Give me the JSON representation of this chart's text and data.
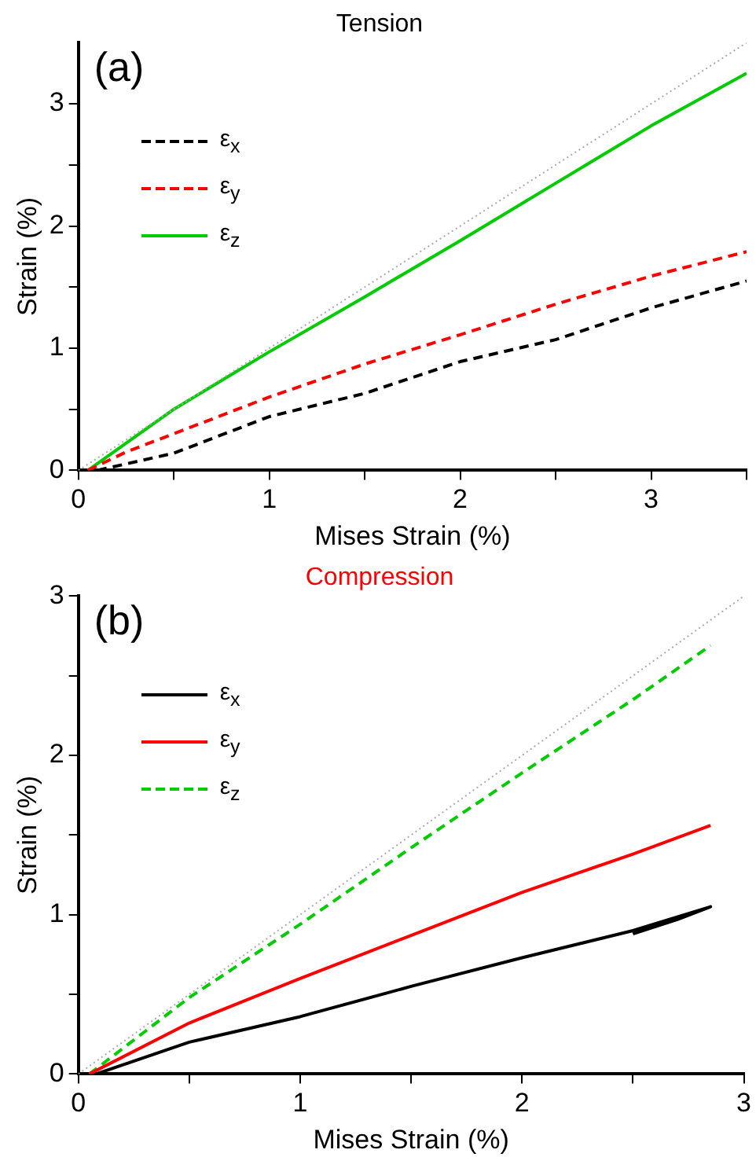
{
  "chart_data": [
    {
      "type": "line",
      "title": "Tension",
      "xlabel": "Mises Strain (%)",
      "ylabel": "Strain (%)",
      "annotations": [
        "(a)"
      ],
      "xlim": [
        0,
        3.5
      ],
      "ylim": [
        0,
        3.5
      ],
      "xticks": [
        0,
        {
          "value": 0.5,
          "label": null
        },
        1,
        {
          "value": 1.5,
          "label": null
        },
        2,
        {
          "value": 2.5,
          "label": null
        },
        3,
        {
          "value": 3.5,
          "label": null
        }
      ],
      "yticks": [
        0,
        {
          "value": 0.5,
          "label": null
        },
        1,
        {
          "value": 1.5,
          "label": null
        },
        2,
        {
          "value": 2.5,
          "label": null
        },
        3
      ],
      "grid": false,
      "legend": "top left",
      "marker": "none",
      "series": [
        {
          "color": "#aaaaaa",
          "line_style": "dotted",
          "x": [
            0,
            3.5
          ],
          "values": [
            0,
            3.5
          ]
        },
        {
          "name": "ε$_{x}$",
          "color": "#000000",
          "line_style": "dashed",
          "x": [
            0.1,
            0.5,
            1,
            1.5,
            2,
            2.5,
            3,
            3.5
          ],
          "values": [
            0,
            0.14,
            0.44,
            0.63,
            0.89,
            1.07,
            1.33,
            1.55
          ]
        },
        {
          "name": "ε$_{y}$",
          "color": "#ff0000",
          "line_style": "dashed",
          "x": [
            0.05,
            0.25,
            0.5,
            1,
            1.5,
            2,
            2.5,
            3,
            3.5
          ],
          "values": [
            0,
            0.15,
            0.3,
            0.6,
            0.87,
            1.11,
            1.36,
            1.59,
            1.79
          ]
        },
        {
          "name": "ε$_{z}$",
          "color": "#00cc00",
          "line_style": "solid",
          "x": [
            0.05,
            0.5,
            1,
            1.5,
            2,
            2.5,
            3,
            3.5
          ],
          "values": [
            0,
            0.5,
            0.97,
            1.42,
            1.88,
            2.35,
            2.82,
            3.25
          ]
        }
      ]
    },
    {
      "type": "line",
      "title": "Compression",
      "xlabel": "Mises Strain (%)",
      "ylabel": "Strain (%)",
      "annotations": [
        "(b)"
      ],
      "xlim": [
        0,
        3
      ],
      "ylim": [
        0,
        3
      ],
      "xticks": [
        0,
        {
          "value": 0.5,
          "label": null
        },
        1,
        {
          "value": 1.5,
          "label": null
        },
        2,
        {
          "value": 2.5,
          "label": null
        },
        3
      ],
      "yticks": [
        0,
        {
          "value": 0.5,
          "label": null
        },
        1,
        {
          "value": 1.5,
          "label": null
        },
        2,
        {
          "value": 2.5,
          "label": null
        },
        3
      ],
      "grid": false,
      "legend": "top left",
      "marker": "none",
      "series": [
        {
          "color": "#aaaaaa",
          "line_style": "dotted",
          "x": [
            0,
            3
          ],
          "values": [
            0,
            3
          ]
        },
        {
          "name": "ε$_{x}$",
          "color": "#000000",
          "line_style": "solid",
          "x": [
            0.08,
            0.5,
            1,
            1.5,
            2,
            2.5,
            2.85,
            2.7,
            2.5
          ],
          "values": [
            0,
            0.2,
            0.36,
            0.55,
            0.73,
            0.9,
            1.05,
            0.97,
            0.88
          ]
        },
        {
          "name": "ε$_{y}$",
          "color": "#ff0000",
          "line_style": "solid",
          "x": [
            0.05,
            0.5,
            1,
            1.5,
            2,
            2.5,
            2.85
          ],
          "values": [
            0,
            0.32,
            0.6,
            0.87,
            1.14,
            1.38,
            1.56
          ]
        },
        {
          "name": "ε$_{z}$",
          "color": "#00cc00",
          "line_style": "dashed",
          "x": [
            0.05,
            0.5,
            1,
            1.5,
            2,
            2.5,
            2.85
          ],
          "values": [
            0,
            0.48,
            0.94,
            1.42,
            1.89,
            2.35,
            2.69
          ]
        }
      ]
    }
  ]
}
